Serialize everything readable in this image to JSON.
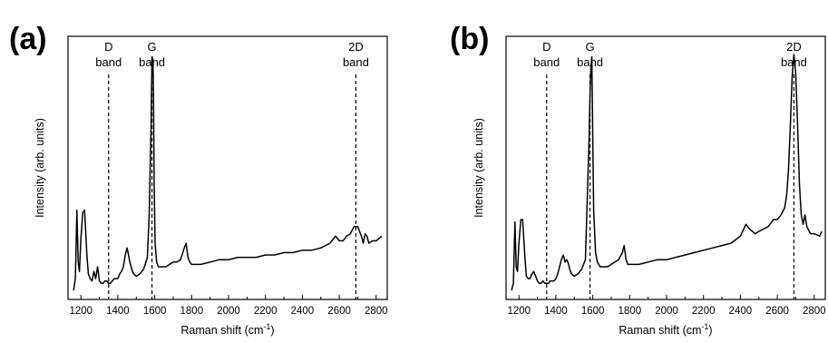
{
  "chart_data": [
    {
      "type": "line",
      "panel_label": "(a)",
      "xlabel": "Raman shift (cm",
      "xlabel_sup": "-1",
      "xlabel_end": ")",
      "ylabel": "Intensity (arb. units)",
      "xlim": [
        1130,
        2860
      ],
      "ylim": [
        0,
        1
      ],
      "x_ticks": [
        1200,
        1400,
        1600,
        1800,
        2000,
        2200,
        2400,
        2600,
        2800
      ],
      "x_tick_labels": [
        "1200",
        "1400",
        "1600",
        "1800",
        "2000",
        "2200",
        "2400",
        "2600",
        "2800"
      ],
      "y_ticks_shown": false,
      "grid": false,
      "bands": [
        {
          "line1": "D",
          "line2": "band",
          "x": 1350
        },
        {
          "line1": "G",
          "line2": "band",
          "x": 1585
        },
        {
          "line1": "2D",
          "line2": "band",
          "x": 2690
        }
      ],
      "series": [
        {
          "x": [
            1160,
            1170,
            1178,
            1185,
            1192,
            1200,
            1210,
            1220,
            1232,
            1240,
            1250,
            1260,
            1270,
            1280,
            1290,
            1300,
            1310,
            1320,
            1330,
            1340,
            1350,
            1360,
            1370,
            1380,
            1390,
            1400,
            1410,
            1420,
            1430,
            1440,
            1450,
            1458,
            1465,
            1475,
            1485,
            1500,
            1520,
            1540,
            1560,
            1570,
            1580,
            1585,
            1590,
            1593,
            1597,
            1602,
            1610,
            1620,
            1640,
            1660,
            1680,
            1700,
            1720,
            1740,
            1760,
            1770,
            1780,
            1790,
            1800,
            1850,
            1900,
            1950,
            2000,
            2050,
            2100,
            2150,
            2200,
            2250,
            2300,
            2350,
            2400,
            2450,
            2500,
            2550,
            2580,
            2600,
            2620,
            2640,
            2660,
            2680,
            2700,
            2710,
            2720,
            2730,
            2740,
            2750,
            2760,
            2780,
            2800,
            2830
          ],
          "y": [
            0.0,
            0.05,
            0.34,
            0.12,
            0.08,
            0.22,
            0.33,
            0.34,
            0.15,
            0.07,
            0.05,
            0.04,
            0.08,
            0.05,
            0.1,
            0.04,
            0.03,
            0.03,
            0.04,
            0.04,
            0.03,
            0.03,
            0.04,
            0.05,
            0.05,
            0.05,
            0.07,
            0.08,
            0.1,
            0.15,
            0.18,
            0.15,
            0.12,
            0.09,
            0.07,
            0.06,
            0.07,
            0.09,
            0.14,
            0.32,
            0.7,
            0.99,
            0.98,
            0.85,
            0.45,
            0.2,
            0.12,
            0.1,
            0.1,
            0.1,
            0.11,
            0.12,
            0.12,
            0.13,
            0.18,
            0.2,
            0.14,
            0.12,
            0.11,
            0.11,
            0.12,
            0.13,
            0.13,
            0.14,
            0.14,
            0.14,
            0.15,
            0.15,
            0.16,
            0.16,
            0.17,
            0.17,
            0.18,
            0.2,
            0.23,
            0.21,
            0.21,
            0.23,
            0.24,
            0.27,
            0.27,
            0.25,
            0.23,
            0.2,
            0.24,
            0.23,
            0.2,
            0.21,
            0.21,
            0.23
          ]
        }
      ]
    },
    {
      "type": "line",
      "panel_label": "(b)",
      "xlabel": "Raman shift (cm",
      "xlabel_sup": "-1",
      "xlabel_end": ")",
      "ylabel": "Intensity (arb. units)",
      "xlim": [
        1130,
        2860
      ],
      "ylim": [
        0,
        1
      ],
      "x_ticks": [
        1200,
        1400,
        1600,
        1800,
        2000,
        2200,
        2400,
        2600,
        2800
      ],
      "x_tick_labels": [
        "1200",
        "1400",
        "1600",
        "1800",
        "2000",
        "2200",
        "2400",
        "2600",
        "2800"
      ],
      "y_ticks_shown": false,
      "grid": false,
      "bands": [
        {
          "line1": "D",
          "line2": "band",
          "x": 1350
        },
        {
          "line1": "G",
          "line2": "band",
          "x": 1585
        },
        {
          "line1": "2D",
          "line2": "band",
          "x": 2690
        }
      ],
      "series": [
        {
          "x": [
            1160,
            1170,
            1178,
            1185,
            1192,
            1200,
            1210,
            1220,
            1232,
            1240,
            1250,
            1260,
            1270,
            1280,
            1290,
            1300,
            1310,
            1320,
            1330,
            1340,
            1350,
            1360,
            1370,
            1380,
            1390,
            1400,
            1410,
            1420,
            1430,
            1440,
            1450,
            1458,
            1465,
            1475,
            1485,
            1500,
            1520,
            1540,
            1560,
            1570,
            1580,
            1585,
            1590,
            1595,
            1600,
            1605,
            1615,
            1625,
            1640,
            1660,
            1680,
            1700,
            1720,
            1740,
            1760,
            1770,
            1780,
            1790,
            1800,
            1850,
            1900,
            1950,
            2000,
            2050,
            2100,
            2150,
            2200,
            2250,
            2300,
            2350,
            2400,
            2430,
            2450,
            2480,
            2500,
            2550,
            2580,
            2600,
            2620,
            2640,
            2650,
            2660,
            2670,
            2680,
            2690,
            2700,
            2710,
            2720,
            2730,
            2740,
            2750,
            2760,
            2780,
            2800,
            2830,
            2840
          ],
          "y": [
            0.0,
            0.03,
            0.29,
            0.1,
            0.08,
            0.2,
            0.3,
            0.3,
            0.14,
            0.06,
            0.05,
            0.05,
            0.07,
            0.08,
            0.06,
            0.04,
            0.03,
            0.03,
            0.04,
            0.03,
            0.03,
            0.03,
            0.04,
            0.04,
            0.04,
            0.05,
            0.07,
            0.1,
            0.13,
            0.15,
            0.12,
            0.13,
            0.12,
            0.09,
            0.07,
            0.06,
            0.07,
            0.09,
            0.13,
            0.38,
            0.65,
            0.83,
            0.95,
            0.99,
            0.65,
            0.34,
            0.16,
            0.12,
            0.1,
            0.1,
            0.1,
            0.11,
            0.12,
            0.13,
            0.16,
            0.19,
            0.13,
            0.11,
            0.11,
            0.11,
            0.12,
            0.13,
            0.13,
            0.14,
            0.15,
            0.16,
            0.17,
            0.18,
            0.19,
            0.2,
            0.23,
            0.28,
            0.26,
            0.24,
            0.25,
            0.27,
            0.3,
            0.3,
            0.32,
            0.35,
            0.4,
            0.5,
            0.68,
            0.9,
            1.0,
            0.92,
            0.7,
            0.45,
            0.32,
            0.28,
            0.32,
            0.27,
            0.24,
            0.24,
            0.23,
            0.25
          ]
        }
      ]
    }
  ]
}
